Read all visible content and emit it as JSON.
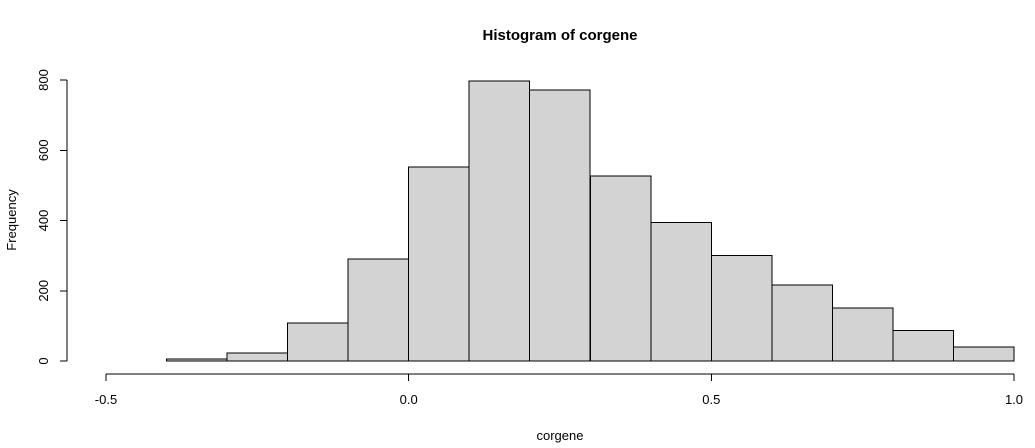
{
  "chart_data": {
    "type": "bar",
    "title": "Histogram of corgene",
    "xlabel": "corgene",
    "ylabel": "Frequency",
    "bins": [
      {
        "start": -0.5,
        "end": -0.4,
        "count": 0
      },
      {
        "start": -0.4,
        "end": -0.3,
        "count": 5
      },
      {
        "start": -0.3,
        "end": -0.2,
        "count": 23
      },
      {
        "start": -0.2,
        "end": -0.1,
        "count": 108
      },
      {
        "start": -0.1,
        "end": 0.0,
        "count": 290
      },
      {
        "start": 0.0,
        "end": 0.1,
        "count": 553
      },
      {
        "start": 0.1,
        "end": 0.2,
        "count": 797
      },
      {
        "start": 0.2,
        "end": 0.3,
        "count": 772
      },
      {
        "start": 0.3,
        "end": 0.4,
        "count": 527
      },
      {
        "start": 0.4,
        "end": 0.5,
        "count": 395
      },
      {
        "start": 0.5,
        "end": 0.6,
        "count": 300
      },
      {
        "start": 0.6,
        "end": 0.7,
        "count": 217
      },
      {
        "start": 0.7,
        "end": 0.8,
        "count": 151
      },
      {
        "start": 0.8,
        "end": 0.9,
        "count": 87
      },
      {
        "start": 0.9,
        "end": 1.0,
        "count": 40
      }
    ],
    "xlim": [
      -0.5,
      1.0
    ],
    "ylim": [
      0,
      800
    ],
    "x_ticks": [
      -0.5,
      0.0,
      0.5,
      1.0
    ],
    "x_tick_labels": [
      "-0.5",
      "0.0",
      "0.5",
      "1.0"
    ],
    "y_ticks": [
      0,
      200,
      400,
      600,
      800
    ],
    "y_tick_labels": [
      "0",
      "200",
      "400",
      "600",
      "800"
    ],
    "bar_color": "#d3d3d3",
    "grid": false,
    "legend": "none"
  }
}
